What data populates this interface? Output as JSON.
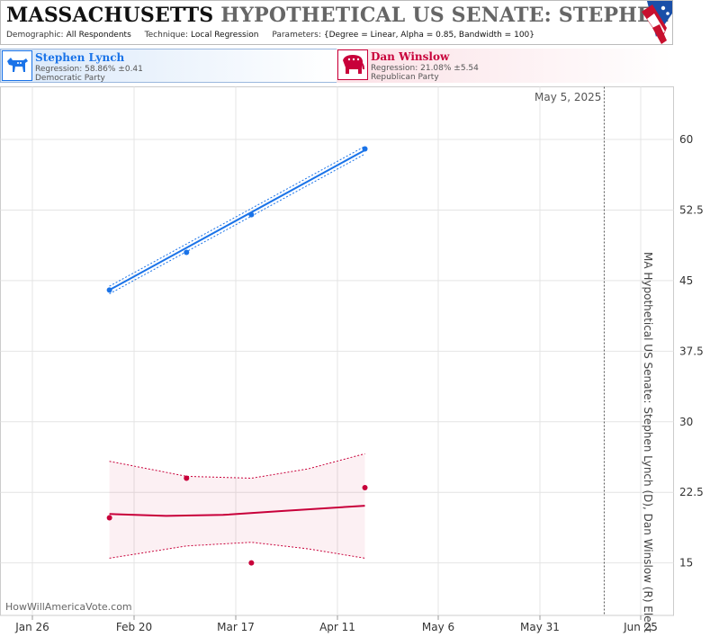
{
  "header": {
    "title_state": "MASSACHUSETTS",
    "title_rest": "HYPOTHETICAL US SENATE: STEPHEN LYNCH",
    "demographic_label": "Demographic:",
    "demographic_value": "All Respondents",
    "technique_label": "Technique:",
    "technique_value": "Local Regression",
    "parameters_label": "Parameters:",
    "parameters_value": "{Degree = Linear, Alpha = 0.85, Bandwidth = 100}"
  },
  "candidates": [
    {
      "name": "Stephen Lynch",
      "regression": "Regression: 58.86% ±0.41",
      "party": "Democratic Party",
      "color": "#1a73e8"
    },
    {
      "name": "Dan Winslow",
      "regression": "Regression: 21.08% ±5.54",
      "party": "Republican Party",
      "color": "#c8003a"
    }
  ],
  "chart_data": {
    "type": "scatter",
    "title": "MA Hypothetical US Senate: Stephen Lynch (D), Dan Winslow (R) Election",
    "date_marker": "May 5, 2025",
    "watermark": "HowWillAmericaVote.com",
    "x_ticks": [
      "Jan 26",
      "Feb 20",
      "Mar 17",
      "Apr 11",
      "May 6",
      "May 31",
      "Jun 25"
    ],
    "y_ticks": [
      "60",
      "52.5",
      "45",
      "37.5",
      "30",
      "22.5",
      "15"
    ],
    "ylim": [
      11,
      65
    ],
    "grid": true,
    "series": [
      {
        "name": "Stephen Lynch",
        "color": "#1a73e8",
        "points": [
          [
            "2025-02-14",
            44.0
          ],
          [
            "2025-03-05",
            48.0
          ],
          [
            "2025-03-21",
            52.0
          ],
          [
            "2025-04-18",
            59.0
          ]
        ],
        "fit": [
          [
            "2025-02-14",
            44.0
          ],
          [
            "2025-04-18",
            58.86
          ]
        ],
        "band": 0.41
      },
      {
        "name": "Dan Winslow",
        "color": "#c8003a",
        "points": [
          [
            "2025-02-14",
            19.8
          ],
          [
            "2025-03-05",
            24.0
          ],
          [
            "2025-03-21",
            15.0
          ],
          [
            "2025-04-18",
            23.0
          ]
        ],
        "fit": [
          [
            "2025-02-14",
            20.2
          ],
          [
            "2025-02-28",
            20.0
          ],
          [
            "2025-03-14",
            20.1
          ],
          [
            "2025-03-28",
            20.5
          ],
          [
            "2025-04-18",
            21.08
          ]
        ],
        "band_upper": [
          [
            "2025-02-14",
            25.8
          ],
          [
            "2025-03-05",
            24.2
          ],
          [
            "2025-03-21",
            24.0
          ],
          [
            "2025-04-04",
            25.0
          ],
          [
            "2025-04-18",
            26.6
          ]
        ],
        "band_lower": [
          [
            "2025-02-14",
            15.5
          ],
          [
            "2025-03-05",
            16.8
          ],
          [
            "2025-03-21",
            17.2
          ],
          [
            "2025-04-04",
            16.5
          ],
          [
            "2025-04-18",
            15.5
          ]
        ]
      }
    ]
  }
}
